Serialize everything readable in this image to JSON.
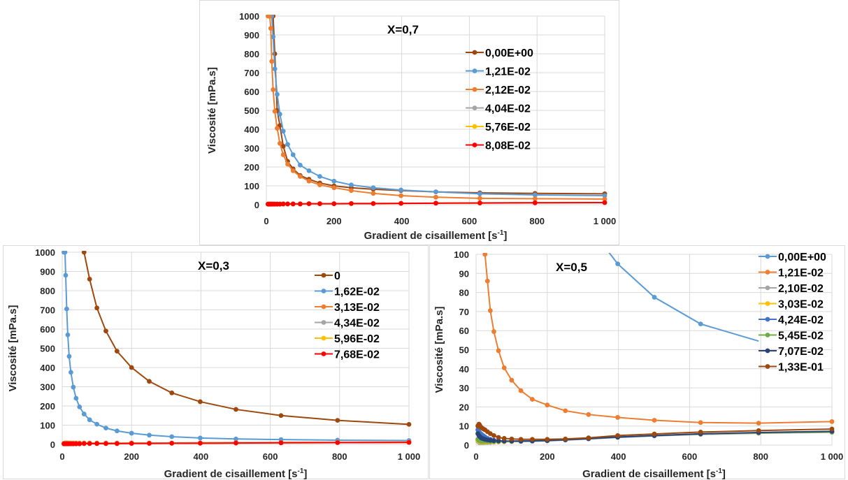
{
  "chart_data": [
    {
      "type": "line",
      "title": "X=0,7",
      "xlabel": "Gradient de cisaillement [s-1]",
      "xlabel_main": "Gradient de cisaillement [s",
      "xlabel_sup": "-1",
      "xlabel_end": "]",
      "ylabel": "Viscosité [mPa.s]",
      "xlim": [
        0,
        1000
      ],
      "ylim": [
        0,
        1000
      ],
      "x_ticks": [
        "0",
        "200",
        "400",
        "600",
        "800",
        "1 000"
      ],
      "y_ticks": [
        "0",
        "100",
        "200",
        "300",
        "400",
        "500",
        "600",
        "700",
        "800",
        "900",
        "1000"
      ],
      "grid": true,
      "legend_position": "top-right",
      "series": [
        {
          "name": "0,00E+00",
          "color": "#9e480e",
          "x": [
            20,
            25,
            32,
            40,
            50,
            63,
            79,
            100,
            126,
            158,
            200,
            251,
            316,
            398,
            501,
            631,
            794,
            1000
          ],
          "y": [
            1000,
            800,
            500,
            420,
            310,
            230,
            190,
            155,
            135,
            115,
            100,
            90,
            82,
            75,
            68,
            63,
            60,
            58
          ]
        },
        {
          "name": "1,21E-02",
          "color": "#5b9bd5",
          "x": [
            10,
            13,
            16,
            20,
            25,
            32,
            40,
            50,
            63,
            79,
            100,
            126,
            158,
            200,
            251,
            316,
            398,
            501,
            631,
            794,
            1000
          ],
          "y": [
            1000,
            1000,
            1000,
            890,
            720,
            585,
            480,
            390,
            320,
            265,
            210,
            180,
            150,
            125,
            105,
            90,
            78,
            68,
            58,
            52,
            48
          ]
        },
        {
          "name": "2,12E-02",
          "color": "#ed7d31",
          "x": [
            5,
            6.3,
            8,
            10,
            13,
            16,
            20,
            25,
            32,
            40,
            50,
            63,
            79,
            100,
            126,
            158,
            200,
            251,
            316,
            398,
            501,
            631,
            794,
            1000
          ],
          "y": [
            1000,
            1000,
            1000,
            1000,
            935,
            760,
            610,
            495,
            405,
            325,
            265,
            215,
            180,
            150,
            125,
            105,
            90,
            75,
            60,
            48,
            40,
            34,
            32,
            30
          ]
        },
        {
          "name": "4,04E-02",
          "color": "#a5a5a5",
          "x": [
            5,
            8,
            10,
            13,
            16,
            20,
            25,
            32,
            40,
            50,
            63,
            79,
            100,
            126,
            158,
            200,
            251,
            316,
            398,
            501,
            631,
            794,
            1000
          ],
          "y": [
            4,
            4,
            4,
            4,
            4,
            4,
            4,
            4,
            4,
            5,
            5,
            5,
            5,
            6,
            6,
            6,
            7,
            7,
            8,
            9,
            10,
            11,
            12
          ]
        },
        {
          "name": "5,76E-02",
          "color": "#ffc000",
          "x": [
            5,
            8,
            10,
            13,
            16,
            20,
            25,
            32,
            40,
            50,
            63,
            79,
            100,
            126,
            158,
            200,
            251,
            316,
            398,
            501,
            631,
            794,
            1000
          ],
          "y": [
            3,
            3,
            3,
            3,
            3,
            3,
            3,
            3,
            3,
            4,
            4,
            4,
            4,
            5,
            5,
            5,
            6,
            6,
            7,
            8,
            9,
            10,
            11
          ]
        },
        {
          "name": "8,08E-02",
          "color": "#ff0000",
          "x": [
            5,
            8,
            10,
            13,
            16,
            20,
            25,
            32,
            40,
            50,
            63,
            79,
            100,
            126,
            158,
            200,
            251,
            316,
            398,
            501,
            631,
            794,
            1000
          ],
          "y": [
            3,
            3,
            3,
            3,
            3,
            3,
            3,
            3,
            3,
            4,
            4,
            4,
            4,
            5,
            5,
            5,
            6,
            6,
            7,
            8,
            9,
            10,
            11
          ]
        }
      ]
    },
    {
      "type": "line",
      "title": "X=0,3",
      "xlabel": "Gradient de cisaillement [s-1]",
      "xlabel_main": "Gradient de cisaillement [s",
      "xlabel_sup": "-1",
      "xlabel_end": "]",
      "ylabel": "Viscosité [mPa.s]",
      "xlim": [
        0,
        1000
      ],
      "ylim": [
        0,
        1000
      ],
      "x_ticks": [
        "0",
        "200",
        "400",
        "600",
        "800",
        "1 000"
      ],
      "y_ticks": [
        "0",
        "100",
        "200",
        "300",
        "400",
        "500",
        "600",
        "700",
        "800",
        "900",
        "1000"
      ],
      "grid": true,
      "legend_position": "top-right",
      "series": [
        {
          "name": "0",
          "color": "#9e480e",
          "x": [
            63,
            79,
            100,
            126,
            158,
            200,
            251,
            316,
            398,
            501,
            631,
            794,
            1000
          ],
          "y": [
            1000,
            860,
            710,
            590,
            485,
            400,
            328,
            268,
            222,
            182,
            150,
            125,
            104
          ]
        },
        {
          "name": "1,62E-02",
          "color": "#5b9bd5",
          "x": [
            5,
            6.3,
            8,
            10,
            13,
            16,
            20,
            25,
            32,
            40,
            50,
            63,
            79,
            100,
            126,
            158,
            200,
            251,
            316,
            398,
            501,
            631,
            794,
            1000
          ],
          "y": [
            1000,
            1000,
            1000,
            880,
            705,
            570,
            458,
            375,
            298,
            240,
            195,
            158,
            128,
            105,
            85,
            70,
            58,
            48,
            40,
            33,
            28,
            25,
            22,
            20
          ]
        },
        {
          "name": "3,13E-02",
          "color": "#ed7d31",
          "x": [
            5,
            8,
            10,
            13,
            16,
            20,
            25,
            32,
            40,
            50,
            63,
            79,
            100,
            126,
            158,
            200,
            251,
            316,
            398,
            501,
            631,
            794,
            1000
          ],
          "y": [
            6,
            7,
            7,
            7,
            7,
            7,
            7,
            7,
            7,
            7,
            7,
            7,
            7,
            7,
            7,
            7,
            7,
            7,
            8,
            9,
            10,
            11,
            12
          ]
        },
        {
          "name": "4,34E-02",
          "color": "#a5a5a5",
          "x": [
            5,
            8,
            10,
            13,
            16,
            20,
            25,
            32,
            40,
            50,
            63,
            79,
            100,
            126,
            158,
            200,
            251,
            316,
            398,
            501,
            631,
            794,
            1000
          ],
          "y": [
            4,
            4,
            4,
            4,
            4,
            4,
            4,
            4,
            4,
            4,
            4,
            5,
            5,
            5,
            5,
            5,
            6,
            6,
            7,
            8,
            9,
            10,
            11
          ]
        },
        {
          "name": "5,96E-02",
          "color": "#ffc000",
          "x": [
            5,
            8,
            10,
            13,
            16,
            20,
            25,
            32,
            40,
            50,
            63,
            79,
            100,
            126,
            158,
            200,
            251,
            316,
            398,
            501,
            631,
            794,
            1000
          ],
          "y": [
            3,
            3,
            3,
            3,
            3,
            3,
            3,
            3,
            3,
            3,
            4,
            4,
            4,
            4,
            4,
            5,
            5,
            6,
            6,
            7,
            8,
            9,
            10
          ]
        },
        {
          "name": "7,68E-02",
          "color": "#ff0000",
          "x": [
            5,
            8,
            10,
            13,
            16,
            20,
            25,
            32,
            40,
            50,
            63,
            79,
            100,
            126,
            158,
            200,
            251,
            316,
            398,
            501,
            631,
            794,
            1000
          ],
          "y": [
            3,
            3,
            3,
            3,
            3,
            3,
            3,
            3,
            3,
            3,
            4,
            4,
            4,
            4,
            4,
            5,
            5,
            6,
            6,
            7,
            8,
            9,
            10
          ]
        }
      ]
    },
    {
      "type": "line",
      "title": "X=0,5",
      "xlabel": "Gradient de cisaillement [s-1]",
      "xlabel_main": "Gradient de cisaillement [s",
      "xlabel_sup": "-1",
      "xlabel_end": "]",
      "ylabel": "Viscosité [mPa.s]",
      "xlim": [
        0,
        1000
      ],
      "ylim": [
        0,
        100
      ],
      "x_ticks": [
        "0",
        "200",
        "400",
        "600",
        "800",
        "1 000"
      ],
      "y_ticks": [
        "0",
        "10",
        "20",
        "30",
        "40",
        "50",
        "60",
        "70",
        "80",
        "90",
        "100"
      ],
      "grid": true,
      "legend_position": "right",
      "series": [
        {
          "name": "0,00E+00",
          "color": "#5b9bd5",
          "x": [
            316,
            398,
            501,
            631,
            794
          ],
          "y": [
            115,
            95,
            77.5,
            63.5,
            54.5
          ],
          "last_marker": false
        },
        {
          "name": "1,21E-02",
          "color": "#ed7d31",
          "x": [
            20,
            25,
            32,
            40,
            50,
            63,
            79,
            100,
            126,
            158,
            200,
            251,
            316,
            398,
            501,
            631,
            794,
            1000
          ],
          "y": [
            115,
            100,
            86,
            70.5,
            59.5,
            49.5,
            40.5,
            34,
            28.5,
            24,
            21,
            18,
            16,
            14.5,
            13,
            11.8,
            11.5,
            12.3
          ]
        },
        {
          "name": "2,10E-02",
          "color": "#a5a5a5",
          "x": [
            5,
            8,
            10,
            13,
            16,
            20,
            25,
            32,
            40,
            50,
            63,
            79,
            100,
            126,
            158,
            200,
            251,
            316,
            398,
            501,
            631,
            794,
            1000
          ],
          "y": [
            2,
            1.5,
            1.2,
            1.2,
            1.2,
            1.2,
            1.3,
            1.3,
            1.4,
            1.5,
            1.6,
            1.7,
            1.8,
            1.9,
            2.0,
            2.2,
            2.6,
            3.2,
            4.0,
            4.8,
            5.6,
            6.2,
            6.7
          ]
        },
        {
          "name": "3,03E-02",
          "color": "#ffc000",
          "x": [
            5,
            8,
            10,
            13,
            16,
            20,
            25,
            32,
            40,
            50,
            63,
            79,
            100,
            126,
            158,
            200,
            251,
            316,
            398,
            501,
            631,
            794,
            1000
          ],
          "y": [
            2.5,
            2,
            1.8,
            1.6,
            1.5,
            1.5,
            1.5,
            1.5,
            1.6,
            1.6,
            1.7,
            1.8,
            1.9,
            2.0,
            2.2,
            2.4,
            2.8,
            3.4,
            4.2,
            5.0,
            5.8,
            6.4,
            6.9
          ]
        },
        {
          "name": "4,24E-02",
          "color": "#4472c4",
          "x": [
            5,
            8,
            10,
            13,
            16,
            20,
            25,
            32,
            40,
            50,
            63,
            79,
            100,
            126,
            158,
            200,
            251,
            316,
            398,
            501,
            631,
            794,
            1000
          ],
          "y": [
            8,
            7,
            6.5,
            6,
            5.5,
            5,
            4.3,
            3.5,
            3,
            2.5,
            2.2,
            2.0,
            2.0,
            2.0,
            2.1,
            2.3,
            2.7,
            3.3,
            4.1,
            4.9,
            5.8,
            6.5,
            7.1
          ]
        },
        {
          "name": "5,45E-02",
          "color": "#70ad47",
          "x": [
            5,
            8,
            10,
            13,
            16,
            20,
            25,
            32,
            40,
            50,
            63,
            79,
            100,
            126,
            158,
            200,
            251,
            316,
            398,
            501,
            631,
            794,
            1000
          ],
          "y": [
            3,
            2.5,
            2.2,
            2,
            1.9,
            1.9,
            1.9,
            1.9,
            1.9,
            1.9,
            1.9,
            2.0,
            2.0,
            2.1,
            2.2,
            2.4,
            2.8,
            3.4,
            4.2,
            5.0,
            5.8,
            6.4,
            6.9
          ]
        },
        {
          "name": "7,07E-02",
          "color": "#264478",
          "x": [
            5,
            8,
            10,
            13,
            16,
            20,
            25,
            32,
            40,
            50,
            63,
            79,
            100,
            126,
            158,
            200,
            251,
            316,
            398,
            501,
            631,
            794,
            1000
          ],
          "y": [
            6,
            5,
            4.5,
            4,
            3.6,
            3.3,
            3.0,
            2.7,
            2.5,
            2.3,
            2.2,
            2.1,
            2.1,
            2.1,
            2.2,
            2.4,
            2.8,
            3.4,
            4.2,
            5.0,
            5.9,
            6.6,
            7.2
          ]
        },
        {
          "name": "1,33E-01",
          "color": "#9e480e",
          "x": [
            5,
            8,
            10,
            13,
            16,
            20,
            25,
            32,
            40,
            50,
            63,
            79,
            100,
            126,
            158,
            200,
            251,
            316,
            398,
            501,
            631,
            794,
            1000
          ],
          "y": [
            10,
            11,
            10.5,
            9.5,
            9,
            8.5,
            8,
            7,
            6,
            5,
            4,
            3.5,
            3.2,
            3.0,
            3.0,
            3.0,
            3.2,
            3.8,
            5.0,
            5.8,
            6.8,
            7.6,
            8.4
          ]
        }
      ]
    }
  ]
}
